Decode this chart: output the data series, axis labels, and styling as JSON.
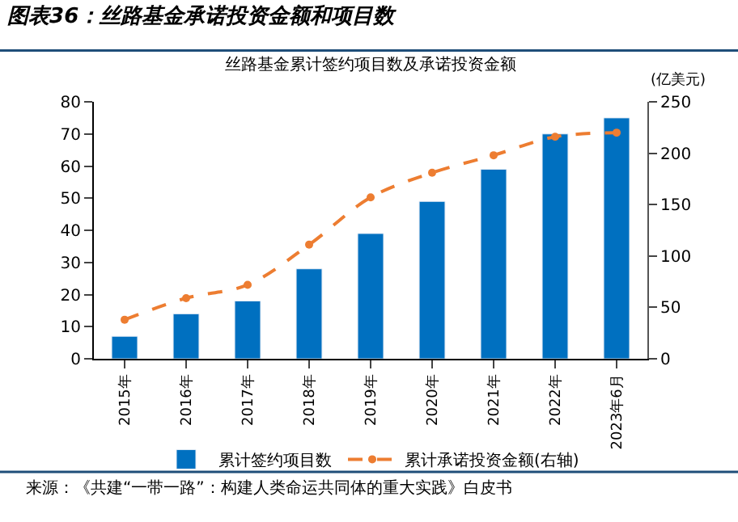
{
  "chart_data": {
    "type": "bar",
    "title": "图表36：丝路基金承诺投资金额和项目数",
    "subtitle": "丝路基金累计签约项目数及承诺投资金额",
    "y2label": "(亿美元)",
    "annotations": [
      "来源：《共建“一带一路”：构建人类命运共同体的重大实践》白皮书"
    ],
    "categories": [
      "2015年",
      "2016年",
      "2017年",
      "2018年",
      "2019年",
      "2020年",
      "2021年",
      "2022年",
      "2023年6月"
    ],
    "series": [
      {
        "name": "累计签约项目数",
        "color": "#0070c0",
        "values": [
          7,
          14,
          18,
          28,
          39,
          49,
          59,
          70,
          75
        ]
      },
      {
        "name": "累计承诺投资金额(右轴)",
        "type": "line",
        "axis": "y2",
        "color": "#ed7d31",
        "marker": "circle",
        "line_style": "dashed",
        "values": [
          38,
          59,
          72,
          111,
          157,
          181,
          198,
          216,
          220
        ]
      }
    ],
    "ylim": [
      0,
      80
    ],
    "yticks": [
      0,
      10,
      20,
      30,
      40,
      50,
      60,
      70,
      80
    ],
    "y2lim": [
      0,
      250
    ],
    "y2ticks": [
      0,
      50,
      100,
      150,
      200,
      250
    ],
    "legend": "bottom"
  }
}
